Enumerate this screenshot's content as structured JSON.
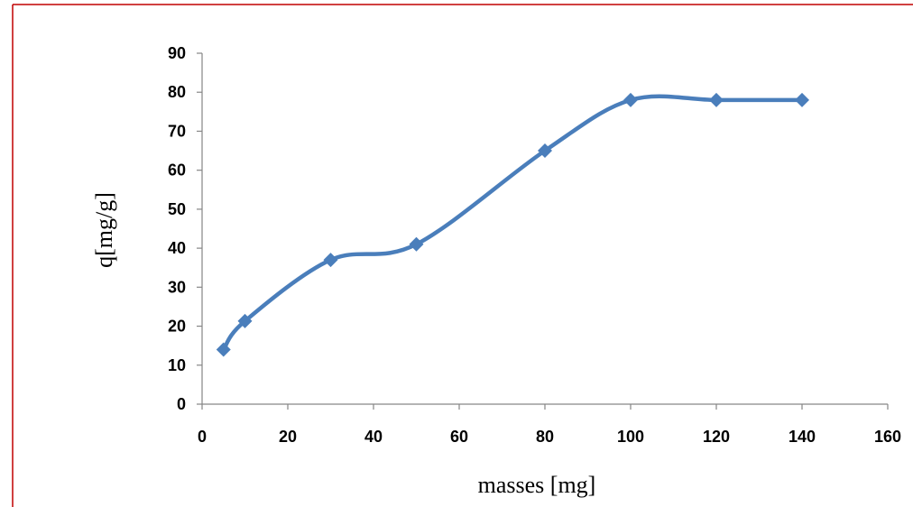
{
  "chart_data": {
    "type": "line",
    "title": "",
    "xlabel": "masses  [mg]",
    "ylabel": "q[mg/g]",
    "xlim": [
      0,
      160
    ],
    "ylim": [
      0,
      90
    ],
    "xticks": [
      0,
      20,
      40,
      60,
      80,
      100,
      120,
      140,
      160
    ],
    "yticks": [
      0,
      10,
      20,
      30,
      40,
      50,
      60,
      70,
      80,
      90
    ],
    "grid": false,
    "legend": "none",
    "smooth": true,
    "marker": "diamond",
    "series": [
      {
        "x": [
          5,
          10,
          30,
          50,
          80,
          100,
          120,
          140
        ],
        "y": [
          14,
          21.3,
          37,
          41,
          65,
          78,
          78,
          78
        ]
      }
    ],
    "colors": {
      "series": "#4a7ebb",
      "frame": "#c00000",
      "axis": "#868686"
    }
  }
}
